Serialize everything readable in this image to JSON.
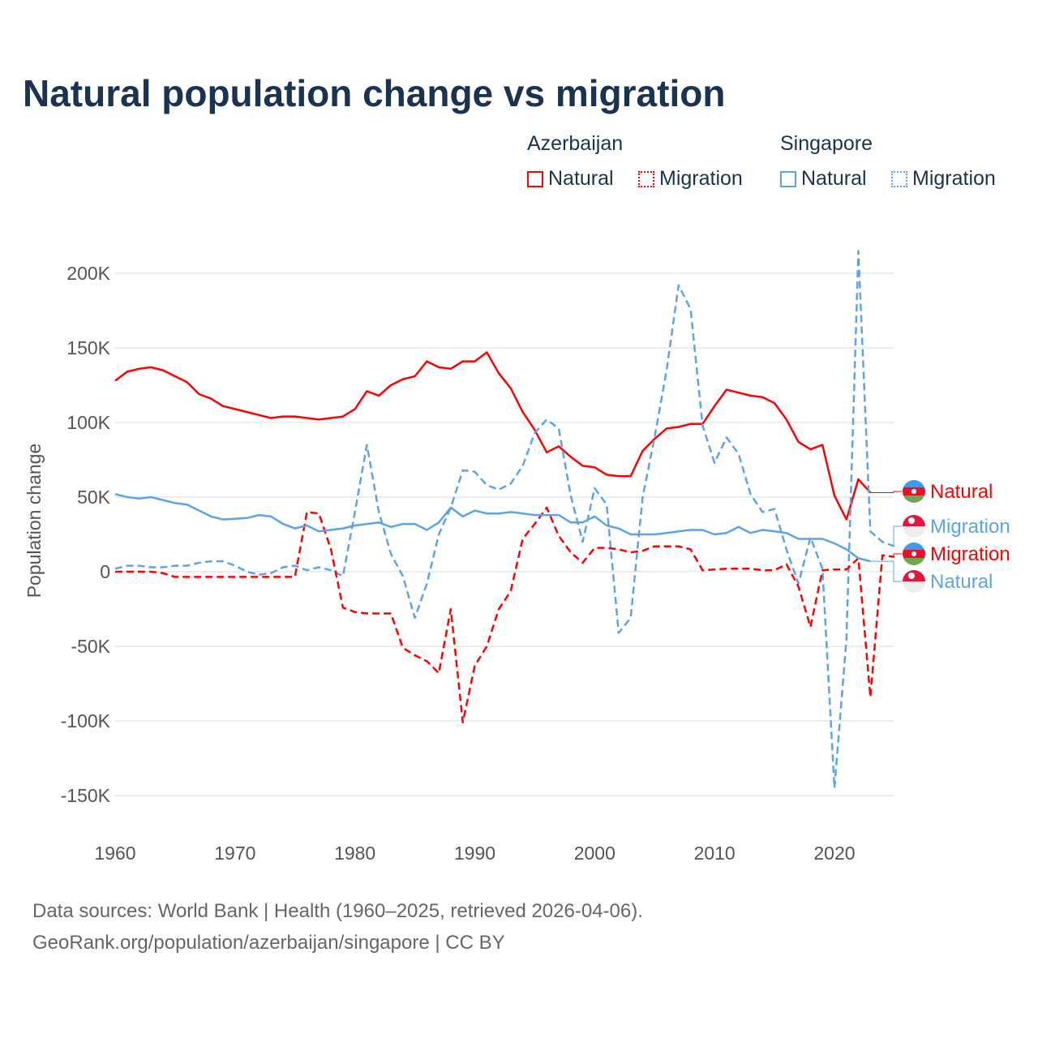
{
  "title": "Natural population change vs migration",
  "legend": {
    "groups": [
      {
        "name": "Azerbaijan",
        "items": [
          {
            "label": "Natural",
            "style": "solid",
            "color": "#ff0000"
          },
          {
            "label": "Migration",
            "style": "dotted",
            "color": "#ff0000"
          }
        ]
      },
      {
        "name": "Singapore",
        "items": [
          {
            "label": "Natural",
            "style": "solid",
            "color": "#5ba4ea"
          },
          {
            "label": "Migration",
            "style": "dotted",
            "color": "#5ba4ea"
          }
        ]
      }
    ]
  },
  "footer": {
    "line1": "Data sources: World Bank | Health (1960–2025, retrieved 2026-04-06).",
    "line2": "GeoRank.org/population/azerbaijan/singapore | CC BY"
  },
  "chart_data": {
    "type": "line",
    "title": "Natural population change vs migration",
    "xlabel": "",
    "ylabel": "Population change",
    "xlim": [
      1960,
      2025
    ],
    "ylim": [
      -150000,
      200000
    ],
    "x_ticks": [
      "1960",
      "1970",
      "1980",
      "1990",
      "2000",
      "2010",
      "2020"
    ],
    "y_ticks": [
      {
        "v": 200000,
        "label": "200K"
      },
      {
        "v": 150000,
        "label": "150K"
      },
      {
        "v": 100000,
        "label": "100K"
      },
      {
        "v": 50000,
        "label": "50K"
      },
      {
        "v": 0,
        "label": "0"
      },
      {
        "v": -50000,
        "label": "-50K"
      },
      {
        "v": -100000,
        "label": "-100K"
      },
      {
        "v": -150000,
        "label": "-150K"
      }
    ],
    "grid": true,
    "x_start": 1960,
    "units": "thousands",
    "series": [
      {
        "name": "Azerbaijan Natural",
        "end_label": "Natural",
        "country": "Azerbaijan",
        "color": "#ff0000",
        "dashed": false,
        "values": [
          128,
          134,
          136,
          137,
          135,
          131,
          127,
          119,
          116,
          111,
          109,
          107,
          105,
          103,
          104,
          104,
          103,
          102,
          103,
          104,
          109,
          121,
          118,
          125,
          129,
          131,
          141,
          137,
          136,
          141,
          141,
          147,
          133,
          123,
          107,
          95,
          80,
          84,
          77,
          71,
          70,
          65,
          64,
          64,
          81,
          89,
          96,
          97,
          99,
          99,
          111,
          122,
          120,
          118,
          117,
          113,
          102,
          87,
          82,
          85,
          51,
          35,
          62,
          53
        ]
      },
      {
        "name": "Singapore Migration",
        "end_label": "Migration",
        "country": "Singapore",
        "color": "#5ba4ea",
        "dashed": true,
        "values": [
          2,
          4,
          4,
          3,
          3,
          4,
          4,
          6,
          7,
          7,
          4,
          0,
          -2,
          -1,
          3,
          4,
          1,
          3,
          1,
          -3,
          40,
          85,
          40,
          12,
          -3,
          -31,
          -8,
          25,
          43,
          68,
          67,
          58,
          55,
          59,
          71,
          93,
          102,
          96,
          51,
          20,
          56,
          45,
          -41,
          -31,
          50,
          90,
          135,
          192,
          176,
          98,
          73,
          90,
          79,
          52,
          40,
          42,
          15,
          -8,
          23,
          2,
          -145,
          -45,
          215,
          27,
          20,
          17
        ]
      },
      {
        "name": "Azerbaijan Migration",
        "end_label": "Migration",
        "country": "Azerbaijan",
        "color": "#ff0000",
        "dashed": true,
        "values": [
          0,
          0,
          0,
          0,
          -1,
          -3.5,
          -3.5,
          -3.5,
          -3.5,
          -3.5,
          -3.5,
          -3.5,
          -3.5,
          -3.5,
          -3.5,
          -3.5,
          40,
          39,
          15,
          -24,
          -27,
          -28,
          -28,
          -28,
          -51,
          -56,
          -60,
          -68,
          -25,
          -101,
          -63,
          -50,
          -25,
          -13,
          22,
          32,
          43,
          24,
          13,
          6,
          16,
          16,
          15,
          13,
          14,
          17,
          17,
          17,
          15,
          1,
          1.5,
          2,
          2,
          2,
          1,
          1,
          5,
          -10,
          -37,
          1,
          1.5,
          1.5,
          9,
          -84,
          11,
          10
        ]
      },
      {
        "name": "Singapore Natural",
        "end_label": "Natural",
        "country": "Singapore",
        "color": "#5ba4ea",
        "dashed": false,
        "values": [
          52,
          50,
          49,
          50,
          48,
          46,
          45,
          41,
          37,
          35,
          35.5,
          36,
          38,
          37,
          32,
          29,
          31,
          27,
          28,
          29,
          31,
          32,
          33,
          30,
          32,
          32,
          28,
          33,
          43,
          37,
          41,
          39,
          39,
          40,
          39,
          38,
          38,
          38,
          33,
          33,
          37,
          31,
          29,
          25,
          25,
          25,
          26,
          27,
          28,
          28,
          25,
          26,
          30,
          26,
          28,
          27,
          26,
          22,
          22,
          22,
          19,
          15,
          9,
          7
        ]
      }
    ]
  }
}
